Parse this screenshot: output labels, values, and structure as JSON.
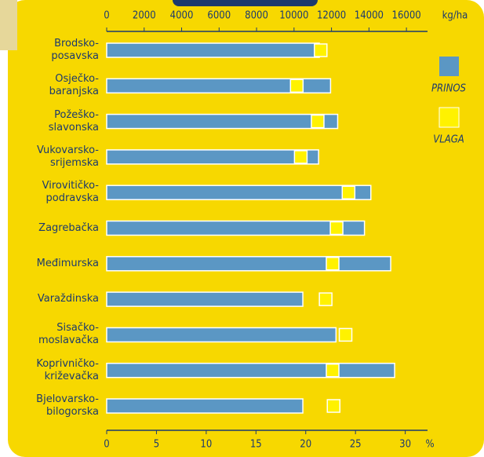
{
  "chart_data": {
    "type": "bar",
    "categories": [
      "Brodsko-\nposavska",
      "Osječko-\nbaranjska",
      "Požeško-\nslavonska",
      "Vukovarsko-\nsrijemska",
      "Virovitičko-\npodravska",
      "Zagrebačka",
      "Međimurska",
      "Varaždinska",
      "Sisačko-\nmoslavačka",
      "Koprivničko-\nkriževačka",
      "Bjelovarsko-\nbilogorska"
    ],
    "series": [
      {
        "name": "PRINOS",
        "color": "#5b97c4",
        "axis": "x",
        "values": [
          11350,
          11950,
          12330,
          11310,
          14100,
          13760,
          15160,
          10470,
          12240,
          15370,
          10470
        ]
      },
      {
        "name": "VLAGA",
        "color": "#fff200",
        "axis": "x2",
        "values": [
          21.5,
          19.1,
          21.2,
          19.5,
          24.3,
          23.1,
          22.7,
          22.0,
          24.0,
          22.7,
          22.8
        ]
      }
    ],
    "xlabel": "kg/ha",
    "x2label": "%",
    "xlim": [
      0,
      17000
    ],
    "xticks": [
      0,
      2000,
      4000,
      6000,
      8000,
      10000,
      12000,
      14000,
      16000
    ],
    "x2lim": [
      0,
      32
    ],
    "x2ticks": [
      0,
      5,
      10,
      15,
      20,
      25,
      30
    ]
  }
}
